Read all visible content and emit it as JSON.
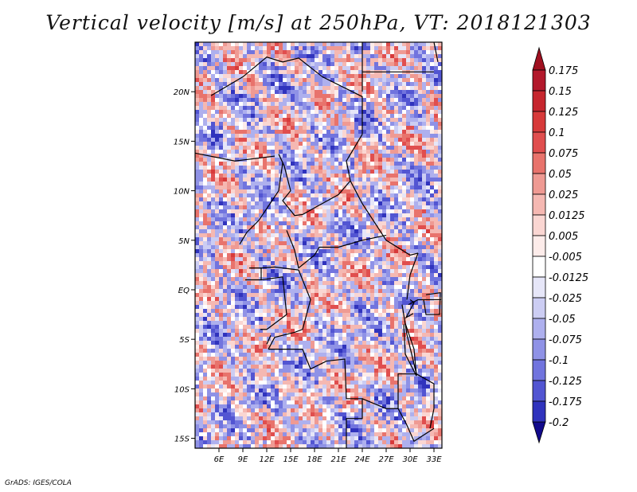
{
  "title": "Vertical velocity [m/s] at 250hPa, VT: 2018121303",
  "footer": "GrADS: IGES/COLA",
  "map": {
    "lon_range": [
      3,
      34
    ],
    "lat_range": [
      -16,
      25
    ],
    "lon_ticks": [
      {
        "value": 6,
        "label": "6E"
      },
      {
        "value": 9,
        "label": "9E"
      },
      {
        "value": 12,
        "label": "12E"
      },
      {
        "value": 15,
        "label": "15E"
      },
      {
        "value": 18,
        "label": "18E"
      },
      {
        "value": 21,
        "label": "21E"
      },
      {
        "value": 24,
        "label": "24E"
      },
      {
        "value": 27,
        "label": "27E"
      },
      {
        "value": 30,
        "label": "30E"
      },
      {
        "value": 33,
        "label": "33E"
      }
    ],
    "lat_ticks": [
      {
        "value": 20,
        "label": "20N"
      },
      {
        "value": 15,
        "label": "15N"
      },
      {
        "value": 10,
        "label": "10N"
      },
      {
        "value": 5,
        "label": "5N"
      },
      {
        "value": 0,
        "label": "EQ"
      },
      {
        "value": -5,
        "label": "5S"
      },
      {
        "value": -10,
        "label": "10S"
      },
      {
        "value": -15,
        "label": "15S"
      }
    ]
  },
  "colorbar": {
    "levels": [
      {
        "label": "0.175",
        "color": "#b2182b"
      },
      {
        "label": "0.15",
        "color": "#c6262e"
      },
      {
        "label": "0.125",
        "color": "#d73a3a"
      },
      {
        "label": "0.1",
        "color": "#e04e4e"
      },
      {
        "label": "0.075",
        "color": "#e8736c"
      },
      {
        "label": "0.05",
        "color": "#ef9a93"
      },
      {
        "label": "0.025",
        "color": "#f5b8b2"
      },
      {
        "label": "0.0125",
        "color": "#fad6d2"
      },
      {
        "label": "0.005",
        "color": "#fdecea"
      },
      {
        "label": "-0.005",
        "color": "#ffffff"
      },
      {
        "label": "-0.0125",
        "color": "#e6e6f8"
      },
      {
        "label": "-0.025",
        "color": "#cccdf3"
      },
      {
        "label": "-0.05",
        "color": "#aeb0ee"
      },
      {
        "label": "-0.075",
        "color": "#8f92e6"
      },
      {
        "label": "-0.1",
        "color": "#7174de"
      },
      {
        "label": "-0.125",
        "color": "#5255d2"
      },
      {
        "label": "-0.175",
        "color": "#3033bd"
      },
      {
        "label": "-0.2",
        "color": "#1a1aa6"
      }
    ],
    "top_color": "#a01020",
    "bottom_color": "#120a8c"
  }
}
